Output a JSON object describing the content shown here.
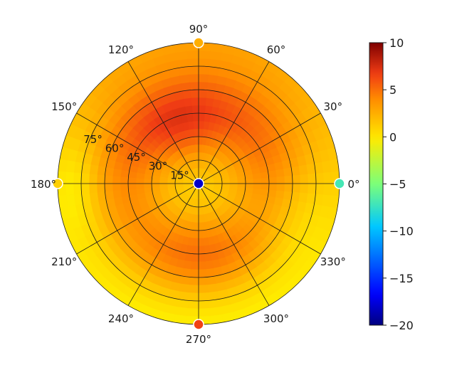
{
  "chart_data": {
    "type": "heatmap",
    "projection": "polar",
    "title": "",
    "angular_ticks": [
      {
        "deg": 0,
        "label": "0°"
      },
      {
        "deg": 30,
        "label": "30°"
      },
      {
        "deg": 60,
        "label": "60°"
      },
      {
        "deg": 90,
        "label": "90°"
      },
      {
        "deg": 120,
        "label": "120°"
      },
      {
        "deg": 150,
        "label": "150°"
      },
      {
        "deg": 180,
        "label": "180°"
      },
      {
        "deg": 210,
        "label": "210°"
      },
      {
        "deg": 240,
        "label": "240°"
      },
      {
        "deg": 270,
        "label": "270°"
      },
      {
        "deg": 300,
        "label": "300°"
      },
      {
        "deg": 330,
        "label": "330°"
      }
    ],
    "radial_ticks": [
      {
        "value": 15,
        "label": "15°"
      },
      {
        "value": 30,
        "label": "30°"
      },
      {
        "value": 45,
        "label": "45°"
      },
      {
        "value": 60,
        "label": "60°"
      },
      {
        "value": 75,
        "label": "75°"
      },
      {
        "value": 90,
        "label": ""
      }
    ],
    "radial_range": [
      0,
      90
    ],
    "grid": true,
    "colormap": "jet-like (dark blue → cyan → yellow → orange → red → dark red)",
    "colorbar": {
      "min": -20,
      "max": 10,
      "ticks": [
        {
          "value": 10,
          "label": "10"
        },
        {
          "value": 5,
          "label": "5"
        },
        {
          "value": 0,
          "label": "0"
        },
        {
          "value": -5,
          "label": "−5"
        },
        {
          "value": -10,
          "label": "−10"
        },
        {
          "value": -15,
          "label": "−15"
        },
        {
          "value": -20,
          "label": "−20"
        }
      ],
      "placement": "right"
    },
    "field_samples": [
      {
        "az": 0,
        "el": 0,
        "value": -7
      },
      {
        "az": 0,
        "el": 90,
        "value": 0.5
      },
      {
        "az": 90,
        "el": 90,
        "value": 1
      },
      {
        "az": 180,
        "el": 90,
        "value": 1
      },
      {
        "az": 270,
        "el": 90,
        "value": 6
      },
      {
        "az": 90,
        "el": 45,
        "value": 5.5
      },
      {
        "az": 270,
        "el": 45,
        "value": 4.5
      },
      {
        "az": 0,
        "el": 45,
        "value": 2
      },
      {
        "az": 180,
        "el": 45,
        "value": 1.5
      }
    ],
    "markers": [
      {
        "az": 90,
        "el": 90,
        "value": 2.5
      },
      {
        "az": 0,
        "el": 90,
        "value": -7
      },
      {
        "az": 180,
        "el": 90,
        "value": 1
      },
      {
        "az": 270,
        "el": 90,
        "value": 6.5
      },
      {
        "az": 0,
        "el": 0,
        "value": -18
      }
    ]
  }
}
